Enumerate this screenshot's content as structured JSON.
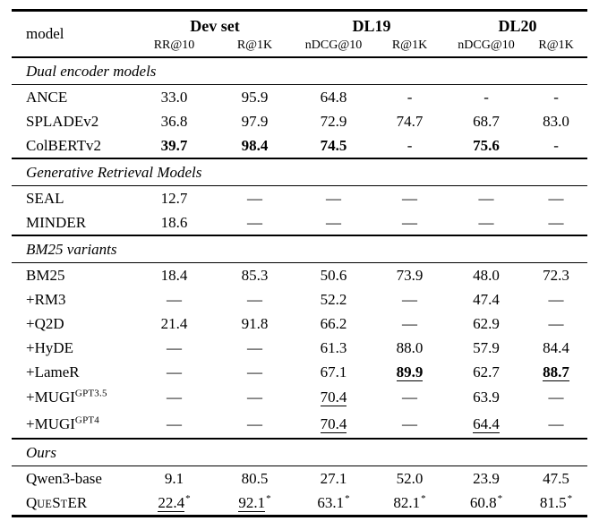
{
  "page": {
    "background_color": "#ffffff",
    "text_color": "#000000",
    "rule_color": "#000000"
  },
  "table": {
    "header": {
      "model_label": "model",
      "groups": [
        {
          "label": "Dev set",
          "subcols": [
            "RR@10",
            "R@1K"
          ]
        },
        {
          "label": "DL19",
          "subcols": [
            "nDCG@10",
            "R@1K"
          ]
        },
        {
          "label": "DL20",
          "subcols": [
            "nDCG@10",
            "R@1K"
          ]
        }
      ]
    },
    "sections": [
      {
        "title": "Dual encoder models",
        "rows": [
          {
            "model": {
              "text": "ANCE"
            },
            "values": [
              {
                "text": "33.0"
              },
              {
                "text": "95.9"
              },
              {
                "text": "64.8"
              },
              {
                "text": "-"
              },
              {
                "text": "-"
              },
              {
                "text": "-"
              }
            ]
          },
          {
            "model": {
              "text": "SPLADEv2"
            },
            "values": [
              {
                "text": "36.8"
              },
              {
                "text": "97.9"
              },
              {
                "text": "72.9"
              },
              {
                "text": "74.7"
              },
              {
                "text": "68.7"
              },
              {
                "text": "83.0"
              }
            ]
          },
          {
            "model": {
              "text": "ColBERTv2"
            },
            "values": [
              {
                "text": "39.7",
                "bold": true
              },
              {
                "text": "98.4",
                "bold": true
              },
              {
                "text": "74.5",
                "bold": true
              },
              {
                "text": "-"
              },
              {
                "text": "75.6",
                "bold": true
              },
              {
                "text": "-"
              }
            ]
          }
        ]
      },
      {
        "title": "Generative Retrieval Models",
        "rows": [
          {
            "model": {
              "text": "SEAL"
            },
            "values": [
              {
                "text": "12.7"
              },
              {
                "text": "—"
              },
              {
                "text": "—"
              },
              {
                "text": "—"
              },
              {
                "text": "—"
              },
              {
                "text": "—"
              }
            ]
          },
          {
            "model": {
              "text": "MINDER"
            },
            "values": [
              {
                "text": "18.6"
              },
              {
                "text": "—"
              },
              {
                "text": "—"
              },
              {
                "text": "—"
              },
              {
                "text": "—"
              },
              {
                "text": "—"
              }
            ]
          }
        ]
      },
      {
        "title": "BM25 variants",
        "rows": [
          {
            "model": {
              "text": "BM25"
            },
            "values": [
              {
                "text": "18.4"
              },
              {
                "text": "85.3"
              },
              {
                "text": "50.6"
              },
              {
                "text": "73.9"
              },
              {
                "text": "48.0"
              },
              {
                "text": "72.3"
              }
            ]
          },
          {
            "model": {
              "text": "+RM3"
            },
            "values": [
              {
                "text": "—"
              },
              {
                "text": "—"
              },
              {
                "text": "52.2"
              },
              {
                "text": "—"
              },
              {
                "text": "47.4"
              },
              {
                "text": "—"
              }
            ]
          },
          {
            "model": {
              "text": "+Q2D"
            },
            "values": [
              {
                "text": "21.4"
              },
              {
                "text": "91.8"
              },
              {
                "text": "66.2"
              },
              {
                "text": "—"
              },
              {
                "text": "62.9"
              },
              {
                "text": "—"
              }
            ]
          },
          {
            "model": {
              "text": "+HyDE"
            },
            "values": [
              {
                "text": "—"
              },
              {
                "text": "—"
              },
              {
                "text": "61.3"
              },
              {
                "text": "88.0"
              },
              {
                "text": "57.9"
              },
              {
                "text": "84.4"
              }
            ]
          },
          {
            "model": {
              "text": "+LameR"
            },
            "values": [
              {
                "text": "—"
              },
              {
                "text": "—"
              },
              {
                "text": "67.1"
              },
              {
                "text": "89.9",
                "bold": true,
                "underline": true
              },
              {
                "text": "62.7"
              },
              {
                "text": "88.7",
                "bold": true,
                "underline": true
              }
            ]
          },
          {
            "model": {
              "text": "+MUGI",
              "sup": "GPT3.5"
            },
            "values": [
              {
                "text": "—"
              },
              {
                "text": "—"
              },
              {
                "text": "70.4",
                "underline": true
              },
              {
                "text": "—"
              },
              {
                "text": "63.9"
              },
              {
                "text": "—"
              }
            ]
          },
          {
            "model": {
              "text": "+MUGI",
              "sup": "GPT4"
            },
            "values": [
              {
                "text": "—"
              },
              {
                "text": "—"
              },
              {
                "text": "70.4",
                "underline": true
              },
              {
                "text": "—"
              },
              {
                "text": "64.4",
                "underline": true
              },
              {
                "text": "—"
              }
            ]
          }
        ]
      },
      {
        "title": "Ours",
        "rows": [
          {
            "model": {
              "text": "Qwen3-base"
            },
            "values": [
              {
                "text": "9.1"
              },
              {
                "text": "80.5"
              },
              {
                "text": "27.1"
              },
              {
                "text": "52.0"
              },
              {
                "text": "23.9"
              },
              {
                "text": "47.5"
              }
            ]
          },
          {
            "model": {
              "text": "QueStER",
              "smallcaps": true
            },
            "values": [
              {
                "text": "22.4",
                "underline": true,
                "sup": "*"
              },
              {
                "text": "92.1",
                "underline": true,
                "sup": "*"
              },
              {
                "text": "63.1",
                "sup": "*"
              },
              {
                "text": "82.1",
                "sup": "*"
              },
              {
                "text": "60.8",
                "sup": "*"
              },
              {
                "text": "81.5",
                "sup": "*"
              }
            ]
          }
        ]
      }
    ]
  }
}
